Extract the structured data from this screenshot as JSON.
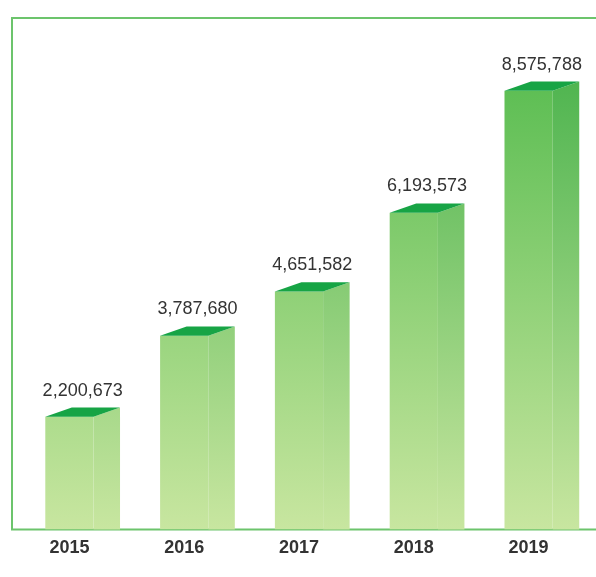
{
  "chart_data": {
    "type": "bar",
    "categories": [
      "2015",
      "2016",
      "2017",
      "2018",
      "2019"
    ],
    "values": [
      2200673,
      3787680,
      4651582,
      6193573,
      8575788
    ],
    "value_labels": [
      "2,200,673",
      "3,787,680",
      "4,651,582",
      "6,193,573",
      "8,575,788"
    ],
    "data_labels": true,
    "color": "#4db848",
    "ylim": [
      0,
      10000000
    ],
    "tick_labels": "x",
    "grid": false
  }
}
